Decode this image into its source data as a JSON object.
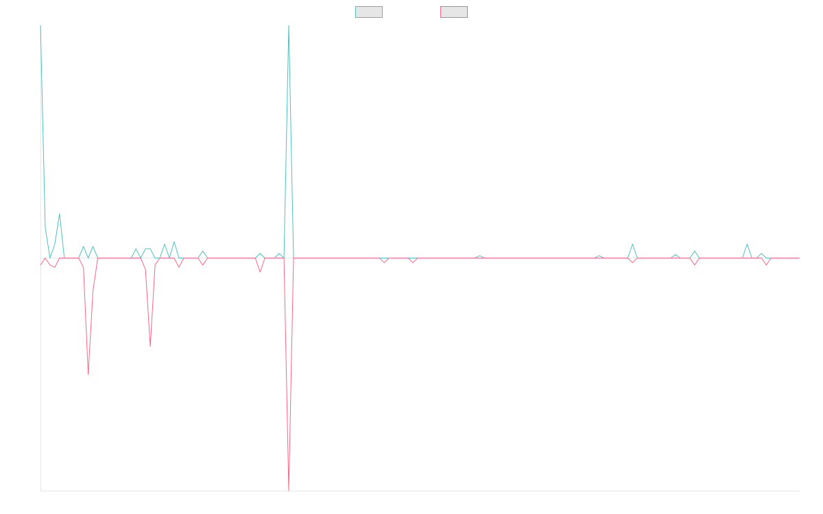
{
  "chart_data": {
    "type": "line",
    "legend": "top",
    "ylim": [
      -100,
      100
    ],
    "series": [
      {
        "color": "#4bc0c0",
        "values": [
          100,
          13,
          0,
          6,
          19,
          0,
          0,
          0,
          0,
          5,
          0,
          5,
          0,
          0,
          0,
          0,
          0,
          0,
          0,
          0,
          4,
          0,
          4,
          4,
          0,
          0,
          6,
          0,
          7,
          0,
          0,
          0,
          0,
          0,
          3,
          0,
          0,
          0,
          0,
          0,
          0,
          0,
          0,
          0,
          0,
          0,
          2,
          0,
          0,
          0,
          2,
          0,
          100,
          0,
          0,
          0,
          0,
          0,
          0,
          0,
          0,
          0,
          0,
          0,
          0,
          0,
          0,
          0,
          0,
          0,
          0,
          0,
          0,
          0,
          0,
          0,
          0,
          0,
          0,
          0,
          0,
          0,
          0,
          0,
          0,
          0,
          0,
          0,
          0,
          0,
          0,
          0,
          1,
          0,
          0,
          0,
          0,
          0,
          0,
          0,
          0,
          0,
          0,
          0,
          0,
          0,
          0,
          0,
          0,
          0,
          0,
          0,
          0,
          0,
          0,
          0,
          0,
          1,
          0,
          0,
          0,
          0,
          0,
          0,
          6,
          0,
          0,
          0,
          0,
          0,
          0,
          0,
          0,
          1.5,
          0,
          0,
          0,
          3,
          0,
          0,
          0,
          0,
          0,
          0,
          0,
          0,
          0,
          0,
          6,
          0,
          0,
          2,
          0,
          0,
          0,
          0,
          0,
          0,
          0,
          0
        ]
      },
      {
        "color": "#ff6384",
        "values": [
          -3,
          0,
          -3,
          -4,
          0,
          0,
          0,
          0,
          0,
          -4,
          -50,
          -14,
          0,
          0,
          0,
          0,
          0,
          0,
          0,
          0,
          0,
          0,
          -5,
          -38,
          -3,
          0,
          0,
          0,
          0,
          -4,
          0,
          0,
          0,
          0,
          -3,
          0,
          0,
          0,
          0,
          0,
          0,
          0,
          0,
          0,
          0,
          0,
          -6,
          0,
          0,
          0,
          0,
          0,
          -100,
          0,
          0,
          0,
          0,
          0,
          0,
          0,
          0,
          0,
          0,
          0,
          0,
          0,
          0,
          0,
          0,
          0,
          0,
          0,
          -2,
          0,
          0,
          0,
          0,
          0,
          -2,
          0,
          0,
          0,
          0,
          0,
          0,
          0,
          0,
          0,
          0,
          0,
          0,
          0,
          0,
          0,
          0,
          0,
          0,
          0,
          0,
          0,
          0,
          0,
          0,
          0,
          0,
          0,
          0,
          0,
          0,
          0,
          0,
          0,
          0,
          0,
          0,
          0,
          0,
          0,
          0,
          0,
          0,
          0,
          0,
          0,
          -2,
          0,
          0,
          0,
          0,
          0,
          0,
          0,
          0,
          0,
          0,
          0,
          0,
          -3,
          0,
          0,
          0,
          0,
          0,
          0,
          0,
          0,
          0,
          0,
          0,
          0,
          0,
          0,
          -3,
          0,
          0,
          0,
          0,
          0,
          0,
          0
        ]
      }
    ]
  }
}
